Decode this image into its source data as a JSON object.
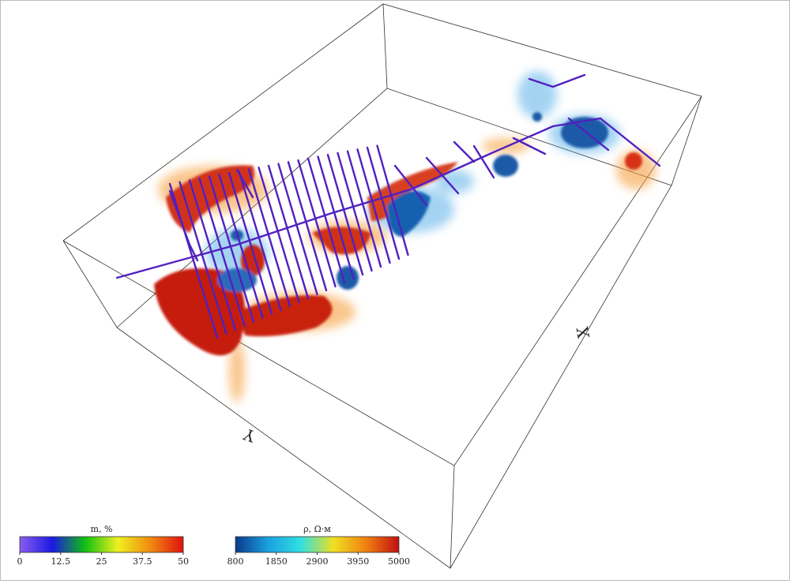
{
  "axes": {
    "x_label": "X",
    "y_label": "Y"
  },
  "colorbars": [
    {
      "title": "m, %",
      "lim": [
        0,
        50
      ],
      "ticks": [
        0,
        12.5,
        25,
        37.5,
        50
      ],
      "colors": [
        "#8a5cf0",
        "#1a1ae0",
        "#10c010",
        "#f0f020",
        "#f08a10",
        "#e01010"
      ]
    },
    {
      "title": "ρ, Ω·м",
      "lim": [
        800,
        5000
      ],
      "ticks": [
        800,
        1850,
        2900,
        3950,
        5000
      ],
      "colors": [
        "#0a3a8a",
        "#1aa0e0",
        "#30e0e0",
        "#f0e020",
        "#f08010",
        "#c01010"
      ]
    }
  ]
}
